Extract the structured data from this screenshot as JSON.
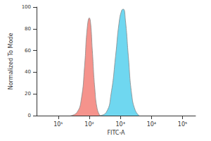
{
  "chart_data": {
    "type": "area",
    "x_label": "FITC-A",
    "y_label": "Normalized To Mode",
    "log": "x",
    "grid": false,
    "xlim": [
      2,
      262144
    ],
    "xticks": [
      {
        "value": 10,
        "label": "10¹"
      },
      {
        "value": 100,
        "label": "10²"
      },
      {
        "value": 1000,
        "label": "10³"
      },
      {
        "value": 10000,
        "label": "10⁴"
      },
      {
        "value": 100000,
        "label": "10⁵"
      }
    ],
    "ylim": [
      0,
      100
    ],
    "yticks": [
      0,
      20,
      40,
      60,
      80,
      100
    ],
    "series": [
      {
        "color": "#f4877f",
        "x": [
          25,
          40,
          55,
          70,
          85,
          100,
          110,
          125,
          150,
          180,
          220
        ],
        "values": [
          0,
          3,
          15,
          45,
          80,
          90,
          85,
          60,
          25,
          6,
          0
        ]
      },
      {
        "color": "#5fd3ee",
        "x": [
          200,
          350,
          500,
          700,
          900,
          1100,
          1250,
          1450,
          1800,
          2300,
          3000,
          4000
        ],
        "values": [
          0,
          3,
          20,
          55,
          85,
          97,
          98,
          88,
          55,
          20,
          5,
          0
        ]
      }
    ]
  }
}
